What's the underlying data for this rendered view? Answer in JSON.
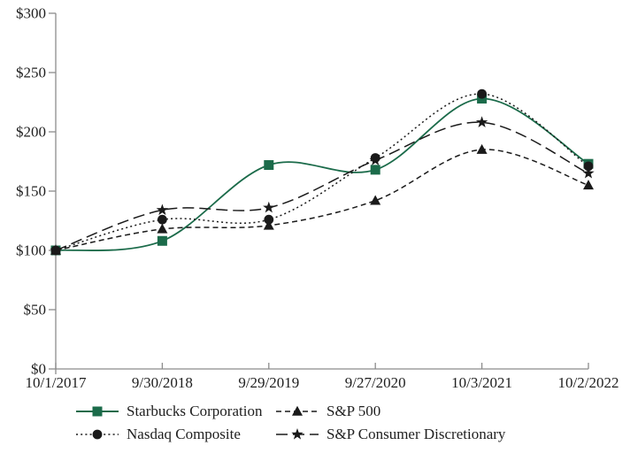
{
  "chart_data": {
    "type": "line",
    "title": "",
    "xlabel": "",
    "ylabel": "",
    "x_categories": [
      "10/1/2017",
      "9/30/2018",
      "9/29/2019",
      "9/27/2020",
      "10/3/2021",
      "10/2/2022"
    ],
    "y_ticks": [
      0,
      50,
      100,
      150,
      200,
      250,
      300
    ],
    "y_tick_labels": [
      "$0",
      "$50",
      "$100",
      "$150",
      "$200",
      "$250",
      "$300"
    ],
    "ylim": [
      0,
      300
    ],
    "grid": "off",
    "legend_position": "bottom",
    "line_smoothing": "smooth",
    "series": [
      {
        "name": "Starbucks Corporation",
        "marker": "square",
        "line_style": "solid",
        "color": "#1b6b4a",
        "values": [
          100,
          108,
          172,
          168,
          228,
          173
        ]
      },
      {
        "name": "Nasdaq Composite",
        "marker": "circle",
        "line_style": "dotted",
        "color": "#1a1a1a",
        "values": [
          100,
          126,
          126,
          178,
          232,
          171
        ]
      },
      {
        "name": "S&P 500",
        "marker": "triangle",
        "line_style": "dashed",
        "color": "#1a1a1a",
        "values": [
          100,
          118,
          121,
          142,
          185,
          155
        ]
      },
      {
        "name": "S&P Consumer Discretionary",
        "marker": "star",
        "line_style": "long-dash",
        "color": "#1a1a1a",
        "values": [
          100,
          134,
          136,
          176,
          208,
          165
        ]
      }
    ],
    "colors": {
      "accent_green": "#1b6b4a",
      "series_black": "#1a1a1a",
      "axis_gray": "#8c8c8c",
      "text": "#1f1f1f",
      "background": "#ffffff"
    }
  }
}
